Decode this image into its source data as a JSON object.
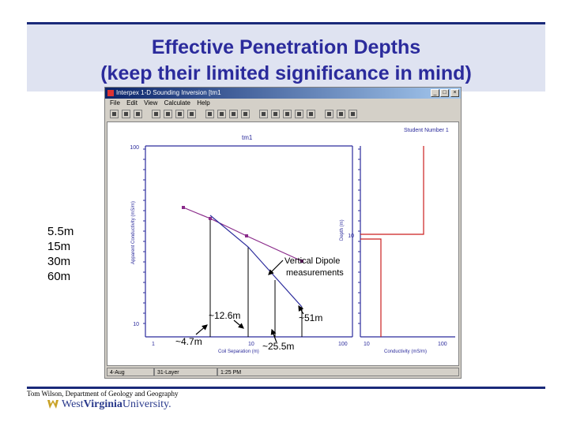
{
  "slide": {
    "title_line1": "Effective Penetration Depths",
    "title_line2": "(keep their limited significance in mind)",
    "depths": [
      "5.5m",
      "15m",
      "30m",
      "60m"
    ],
    "footer": "Tom Wilson, Department of Geology and Geography",
    "logo_word1": "West",
    "logo_word2": "Virginia",
    "logo_word3": "University."
  },
  "window": {
    "title": "Interpex 1-D Sounding Inversion [tm1",
    "minimize": "_",
    "maximize": "□",
    "close": "×",
    "menus": [
      "File",
      "Edit",
      "View",
      "Calculate",
      "Help"
    ],
    "toolbar_icons": [
      "new-icon",
      "open-icon",
      "save-icon",
      "print-icon",
      "cut-icon",
      "copy-icon",
      "paste-icon",
      "undo-icon",
      "redo-icon",
      "zoom-icon",
      "pan-icon",
      "calc-icon",
      "fit-icon",
      "layer-icon",
      "model-icon",
      "graph-icon",
      "table-icon",
      "settings-icon",
      "help-icon"
    ],
    "status": [
      "4-Aug",
      "31-Layer",
      "1:25 PM"
    ]
  },
  "plot": {
    "left_title": "tm1",
    "right_title": "Student Number 1",
    "left_ylabel": "Apparent Conductivity (mS/m)",
    "right_ylabel": "Depth (m)",
    "left_xlabel": "Coil Separation (m)",
    "right_xlabel": "Conductivity (mS/m)",
    "left_yticks": [
      "100",
      "10"
    ],
    "left_xticks": [
      "1",
      "10",
      "100"
    ],
    "right_xticks": [
      "10",
      "100"
    ],
    "right_ytick": "10"
  },
  "annotations": {
    "vertical_dipole": "Vertical Dipole",
    "measurements": "measurements",
    "a1": "~4.7m",
    "a2": "~12.6m",
    "a3": "~25.5m",
    "a4": "~51m"
  },
  "chart_data": {
    "type": "line",
    "title": "tm1",
    "xlabel": "Coil Separation (m)",
    "ylabel": "Apparent Conductivity (mS/m)",
    "x_scale": "log",
    "y_scale": "log",
    "series": [
      {
        "values": [
          [
            10,
            55
          ],
          [
            15,
            50
          ],
          [
            20,
            38
          ],
          [
            40,
            25
          ]
        ]
      },
      {
        "values": [
          [
            10,
            55
          ],
          [
            15,
            40
          ],
          [
            20,
            25
          ],
          [
            40,
            12
          ]
        ]
      }
    ],
    "colors": {
      "measured": "#8a2b8a",
      "model": "#2b2b9c",
      "layer_model": "#cc1f1f"
    }
  }
}
